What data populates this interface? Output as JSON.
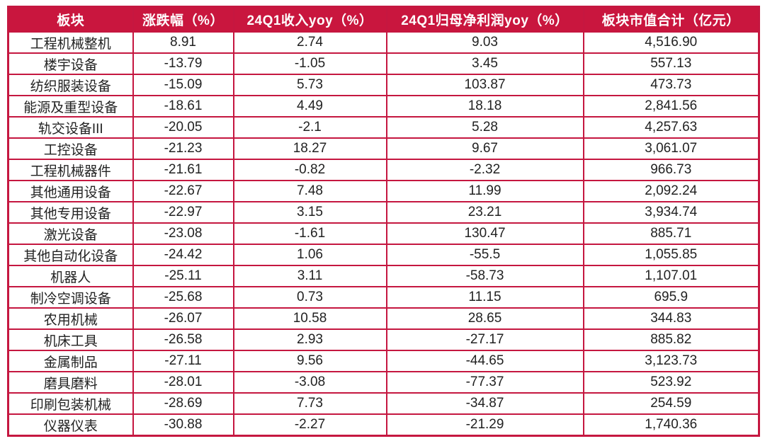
{
  "chart_data": {
    "type": "table",
    "columns": [
      "板块",
      "涨跌幅（%）",
      "24Q1收入yoy（%）",
      "24Q1归母净利润yoy（%）",
      "板块市值合计（亿元）"
    ],
    "rows": [
      [
        "工程机械整机",
        "8.91",
        "2.74",
        "9.03",
        "4,516.90"
      ],
      [
        "楼宇设备",
        "-13.79",
        "-1.05",
        "3.45",
        "557.13"
      ],
      [
        "纺织服装设备",
        "-15.09",
        "5.73",
        "103.87",
        "473.73"
      ],
      [
        "能源及重型设备",
        "-18.61",
        "4.49",
        "18.18",
        "2,841.56"
      ],
      [
        "轨交设备III",
        "-20.05",
        "-2.1",
        "5.28",
        "4,257.63"
      ],
      [
        "工控设备",
        "-21.23",
        "18.27",
        "9.67",
        "3,061.07"
      ],
      [
        "工程机械器件",
        "-21.61",
        "-0.82",
        "-2.32",
        "966.73"
      ],
      [
        "其他通用设备",
        "-22.67",
        "7.48",
        "11.99",
        "2,092.24"
      ],
      [
        "其他专用设备",
        "-22.97",
        "3.15",
        "23.21",
        "3,934.74"
      ],
      [
        "激光设备",
        "-23.08",
        "-1.61",
        "130.47",
        "885.71"
      ],
      [
        "其他自动化设备",
        "-24.42",
        "1.06",
        "-55.5",
        "1,055.85"
      ],
      [
        "机器人",
        "-25.11",
        "3.11",
        "-58.73",
        "1,107.01"
      ],
      [
        "制冷空调设备",
        "-25.68",
        "0.73",
        "11.15",
        "695.9"
      ],
      [
        "农用机械",
        "-26.07",
        "10.58",
        "28.65",
        "344.83"
      ],
      [
        "机床工具",
        "-26.58",
        "2.93",
        "-27.17",
        "885.82"
      ],
      [
        "金属制品",
        "-27.11",
        "9.56",
        "-44.65",
        "3,123.73"
      ],
      [
        "磨具磨料",
        "-28.01",
        "-3.08",
        "-77.37",
        "523.92"
      ],
      [
        "印刷包装机械",
        "-28.69",
        "7.73",
        "-34.87",
        "254.59"
      ],
      [
        "仪器仪表",
        "-30.88",
        "-2.27",
        "-21.29",
        "1,740.36"
      ]
    ]
  },
  "colors": {
    "header_bg": "#C9163E",
    "border": "#C51740",
    "header_text": "#FFFFFF",
    "body_text": "#222222",
    "page_bg": "#FFFFFF"
  }
}
